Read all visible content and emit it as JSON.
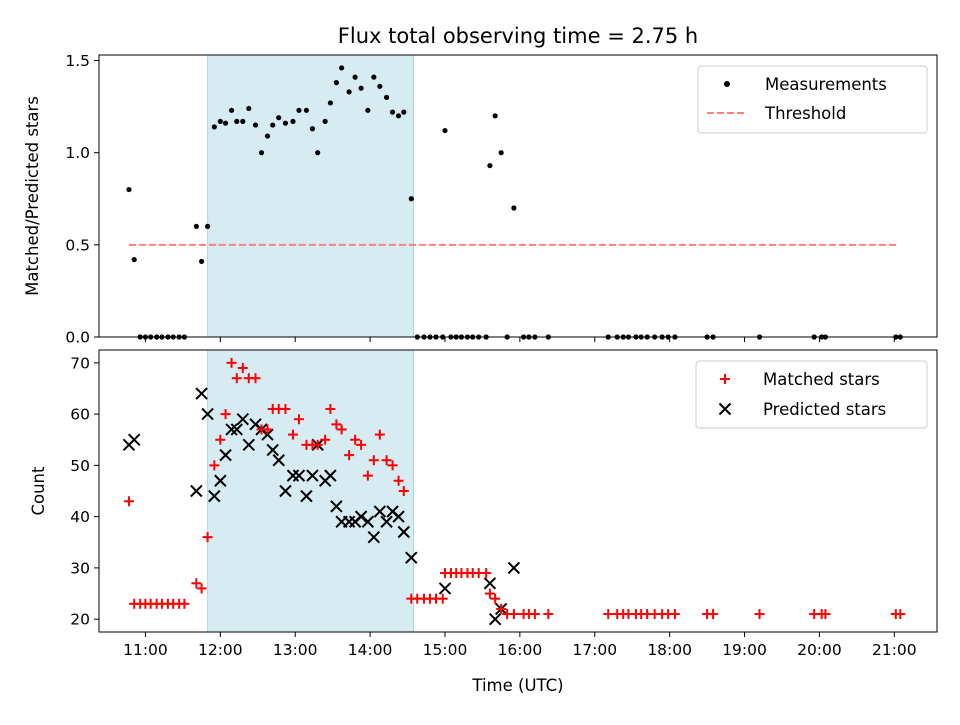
{
  "chart_data": [
    {
      "type": "scatter",
      "title": "Flux total observing time = 2.75 h",
      "xlabel": "",
      "ylabel": "Matched/Predicted stars",
      "xlim": [
        10.38,
        21.57
      ],
      "ylim": [
        0,
        1.53
      ],
      "yticks": [
        0.0,
        0.5,
        1.0,
        1.5
      ],
      "ytick_labels": [
        "0.0",
        "0.5",
        "1.0",
        "1.5"
      ],
      "xticks": [
        11,
        12,
        13,
        14,
        15,
        16,
        17,
        18,
        19,
        20,
        21
      ],
      "shaded_span": [
        11.83,
        14.58
      ],
      "legend_position": "upper right",
      "series": [
        {
          "name": "Measurements",
          "marker": "dot",
          "color": "#000000",
          "points": [
            [
              10.78,
              0.8
            ],
            [
              10.85,
              0.42
            ],
            [
              10.93,
              0.0
            ],
            [
              11.0,
              0.0
            ],
            [
              11.07,
              0.0
            ],
            [
              11.15,
              0.0
            ],
            [
              11.22,
              0.0
            ],
            [
              11.3,
              0.0
            ],
            [
              11.37,
              0.0
            ],
            [
              11.45,
              0.0
            ],
            [
              11.52,
              0.0
            ],
            [
              11.68,
              0.6
            ],
            [
              11.75,
              0.41
            ],
            [
              11.83,
              0.6
            ],
            [
              11.92,
              1.14
            ],
            [
              12.0,
              1.17
            ],
            [
              12.07,
              1.16
            ],
            [
              12.15,
              1.23
            ],
            [
              12.22,
              1.17
            ],
            [
              12.3,
              1.17
            ],
            [
              12.38,
              1.24
            ],
            [
              12.47,
              1.15
            ],
            [
              12.55,
              1.0
            ],
            [
              12.63,
              1.09
            ],
            [
              12.7,
              1.15
            ],
            [
              12.78,
              1.19
            ],
            [
              12.87,
              1.16
            ],
            [
              12.97,
              1.17
            ],
            [
              13.05,
              1.23
            ],
            [
              13.15,
              1.23
            ],
            [
              13.23,
              1.13
            ],
            [
              13.3,
              1.0
            ],
            [
              13.4,
              1.17
            ],
            [
              13.47,
              1.27
            ],
            [
              13.55,
              1.38
            ],
            [
              13.62,
              1.46
            ],
            [
              13.72,
              1.33
            ],
            [
              13.8,
              1.41
            ],
            [
              13.88,
              1.35
            ],
            [
              13.97,
              1.23
            ],
            [
              14.05,
              1.41
            ],
            [
              14.13,
              1.36
            ],
            [
              14.22,
              1.3
            ],
            [
              14.3,
              1.22
            ],
            [
              14.38,
              1.2
            ],
            [
              14.45,
              1.22
            ],
            [
              14.55,
              0.75
            ],
            [
              14.63,
              0.0
            ],
            [
              14.72,
              0.0
            ],
            [
              14.8,
              0.0
            ],
            [
              14.88,
              0.0
            ],
            [
              14.97,
              0.0
            ],
            [
              15.0,
              1.12
            ],
            [
              15.08,
              0.0
            ],
            [
              15.15,
              0.0
            ],
            [
              15.22,
              0.0
            ],
            [
              15.3,
              0.0
            ],
            [
              15.37,
              0.0
            ],
            [
              15.45,
              0.0
            ],
            [
              15.55,
              0.0
            ],
            [
              15.6,
              0.93
            ],
            [
              15.67,
              1.2
            ],
            [
              15.75,
              1.0
            ],
            [
              15.83,
              0.0
            ],
            [
              15.92,
              0.7
            ],
            [
              16.05,
              0.0
            ],
            [
              16.12,
              0.0
            ],
            [
              16.2,
              0.0
            ],
            [
              16.38,
              0.0
            ],
            [
              17.18,
              0.0
            ],
            [
              17.3,
              0.0
            ],
            [
              17.38,
              0.0
            ],
            [
              17.45,
              0.0
            ],
            [
              17.55,
              0.0
            ],
            [
              17.62,
              0.0
            ],
            [
              17.7,
              0.0
            ],
            [
              17.8,
              0.0
            ],
            [
              17.9,
              0.0
            ],
            [
              17.98,
              0.0
            ],
            [
              18.07,
              0.0
            ],
            [
              18.5,
              0.0
            ],
            [
              18.58,
              0.0
            ],
            [
              19.2,
              0.0
            ],
            [
              19.93,
              0.0
            ],
            [
              20.03,
              0.0
            ],
            [
              20.08,
              0.0
            ],
            [
              21.02,
              0.0
            ],
            [
              21.08,
              0.0
            ]
          ]
        },
        {
          "name": "Threshold",
          "style": "dashed-line",
          "color": "#ff7f7f",
          "points": [
            [
              10.78,
              0.5
            ],
            [
              21.05,
              0.5
            ]
          ]
        }
      ]
    },
    {
      "type": "scatter",
      "title": "",
      "xlabel": "Time (UTC)",
      "ylabel": "Count",
      "xlim": [
        10.38,
        21.57
      ],
      "ylim": [
        17.5,
        72.5
      ],
      "yticks": [
        20,
        30,
        40,
        50,
        60,
        70
      ],
      "xticks": [
        11,
        12,
        13,
        14,
        15,
        16,
        17,
        18,
        19,
        20,
        21
      ],
      "xtick_labels": [
        "11:00",
        "12:00",
        "13:00",
        "14:00",
        "15:00",
        "16:00",
        "17:00",
        "18:00",
        "19:00",
        "20:00",
        "21:00"
      ],
      "shaded_span": [
        11.83,
        14.58
      ],
      "legend_position": "upper right",
      "series": [
        {
          "name": "Matched stars",
          "marker": "plus",
          "color": "#ff0000",
          "points": [
            [
              10.78,
              43
            ],
            [
              10.85,
              23
            ],
            [
              10.93,
              23
            ],
            [
              11.0,
              23
            ],
            [
              11.07,
              23
            ],
            [
              11.15,
              23
            ],
            [
              11.22,
              23
            ],
            [
              11.3,
              23
            ],
            [
              11.37,
              23
            ],
            [
              11.45,
              23
            ],
            [
              11.52,
              23
            ],
            [
              11.68,
              27
            ],
            [
              11.75,
              26
            ],
            [
              11.83,
              36
            ],
            [
              11.92,
              50
            ],
            [
              12.0,
              55
            ],
            [
              12.07,
              60
            ],
            [
              12.15,
              70
            ],
            [
              12.22,
              67
            ],
            [
              12.3,
              69
            ],
            [
              12.38,
              67
            ],
            [
              12.47,
              67
            ],
            [
              12.55,
              57
            ],
            [
              12.63,
              57
            ],
            [
              12.7,
              61
            ],
            [
              12.78,
              61
            ],
            [
              12.87,
              61
            ],
            [
              12.97,
              56
            ],
            [
              13.05,
              59
            ],
            [
              13.15,
              54
            ],
            [
              13.23,
              54
            ],
            [
              13.3,
              54
            ],
            [
              13.4,
              55
            ],
            [
              13.47,
              61
            ],
            [
              13.55,
              58
            ],
            [
              13.62,
              57
            ],
            [
              13.72,
              52
            ],
            [
              13.8,
              55
            ],
            [
              13.88,
              54
            ],
            [
              13.97,
              48
            ],
            [
              14.05,
              51
            ],
            [
              14.13,
              56
            ],
            [
              14.22,
              51
            ],
            [
              14.3,
              50
            ],
            [
              14.38,
              47
            ],
            [
              14.45,
              45
            ],
            [
              14.55,
              24
            ],
            [
              14.63,
              24
            ],
            [
              14.72,
              24
            ],
            [
              14.8,
              24
            ],
            [
              14.88,
              24
            ],
            [
              14.97,
              24
            ],
            [
              15.0,
              29
            ],
            [
              15.08,
              29
            ],
            [
              15.15,
              29
            ],
            [
              15.22,
              29
            ],
            [
              15.3,
              29
            ],
            [
              15.37,
              29
            ],
            [
              15.45,
              29
            ],
            [
              15.55,
              29
            ],
            [
              15.6,
              25
            ],
            [
              15.67,
              24
            ],
            [
              15.75,
              22
            ],
            [
              15.83,
              21
            ],
            [
              15.92,
              21
            ],
            [
              16.05,
              21
            ],
            [
              16.12,
              21
            ],
            [
              16.2,
              21
            ],
            [
              16.38,
              21
            ],
            [
              17.18,
              21
            ],
            [
              17.3,
              21
            ],
            [
              17.38,
              21
            ],
            [
              17.45,
              21
            ],
            [
              17.55,
              21
            ],
            [
              17.62,
              21
            ],
            [
              17.7,
              21
            ],
            [
              17.8,
              21
            ],
            [
              17.9,
              21
            ],
            [
              17.98,
              21
            ],
            [
              18.07,
              21
            ],
            [
              18.5,
              21
            ],
            [
              18.58,
              21
            ],
            [
              19.2,
              21
            ],
            [
              19.93,
              21
            ],
            [
              20.03,
              21
            ],
            [
              20.08,
              21
            ],
            [
              21.02,
              21
            ],
            [
              21.08,
              21
            ]
          ]
        },
        {
          "name": "Predicted stars",
          "marker": "x",
          "color": "#000000",
          "points": [
            [
              10.78,
              54
            ],
            [
              10.85,
              55
            ],
            [
              11.68,
              45
            ],
            [
              11.75,
              64
            ],
            [
              11.83,
              60
            ],
            [
              11.92,
              44
            ],
            [
              12.0,
              47
            ],
            [
              12.07,
              52
            ],
            [
              12.15,
              57
            ],
            [
              12.22,
              57
            ],
            [
              12.3,
              59
            ],
            [
              12.38,
              54
            ],
            [
              12.47,
              58
            ],
            [
              12.55,
              57
            ],
            [
              12.63,
              56
            ],
            [
              12.7,
              53
            ],
            [
              12.78,
              51
            ],
            [
              12.87,
              45
            ],
            [
              12.97,
              48
            ],
            [
              13.05,
              48
            ],
            [
              13.15,
              44
            ],
            [
              13.23,
              48
            ],
            [
              13.3,
              54
            ],
            [
              13.4,
              47
            ],
            [
              13.47,
              48
            ],
            [
              13.55,
              42
            ],
            [
              13.62,
              39
            ],
            [
              13.72,
              39
            ],
            [
              13.8,
              39
            ],
            [
              13.88,
              40
            ],
            [
              13.97,
              39
            ],
            [
              14.05,
              36
            ],
            [
              14.13,
              41
            ],
            [
              14.22,
              39
            ],
            [
              14.3,
              41
            ],
            [
              14.38,
              40
            ],
            [
              14.45,
              37
            ],
            [
              14.55,
              32
            ],
            [
              15.0,
              26
            ],
            [
              15.6,
              27
            ],
            [
              15.67,
              20
            ],
            [
              15.75,
              22
            ],
            [
              15.92,
              30
            ]
          ]
        }
      ]
    }
  ]
}
